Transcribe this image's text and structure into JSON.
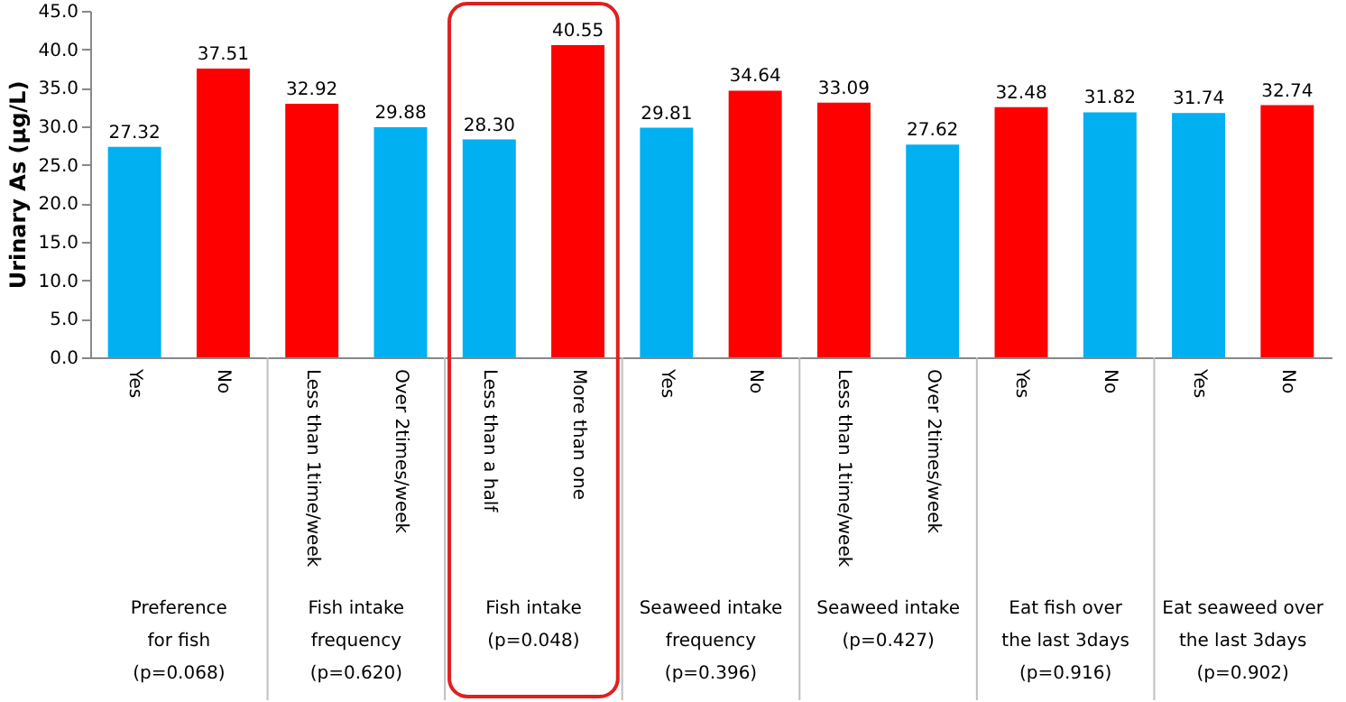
{
  "chart_data": {
    "type": "bar",
    "ylabel": "Urinary As (µg/L)",
    "categories": [
      "Yes",
      "No",
      "Less than 1time/week",
      "Over 2times/week",
      "Less than a half",
      "More than one",
      "Yes",
      "No",
      "Less than 1time/week",
      "Over 2times/week",
      "Yes",
      "No",
      "Yes",
      "No"
    ],
    "values": [
      27.32,
      37.51,
      32.92,
      29.88,
      28.3,
      40.55,
      29.81,
      34.64,
      33.09,
      27.62,
      32.48,
      31.82,
      31.74,
      32.74
    ],
    "value_labels": [
      "27.32",
      "37.51",
      "32.92",
      "29.88",
      "28.30",
      "40.55",
      "29.81",
      "34.64",
      "33.09",
      "27.62",
      "32.48",
      "31.82",
      "31.74",
      "32.74"
    ],
    "colors": [
      "#00b0f0",
      "#ff0000",
      "#ff0000",
      "#00b0f0",
      "#00b0f0",
      "#ff0000",
      "#00b0f0",
      "#ff0000",
      "#ff0000",
      "#00b0f0",
      "#ff0000",
      "#00b0f0",
      "#00b0f0",
      "#ff0000"
    ],
    "ylim": [
      0,
      45
    ],
    "yticks": [
      {
        "value": 0,
        "label": "0.0"
      },
      {
        "value": 5,
        "label": "5.0"
      },
      {
        "value": 10,
        "label": "10.0"
      },
      {
        "value": 15,
        "label": "15.0"
      },
      {
        "value": 20,
        "label": "20.0"
      },
      {
        "value": 25,
        "label": "25.0"
      },
      {
        "value": 30,
        "label": "30.0"
      },
      {
        "value": 35,
        "label": "35.0"
      },
      {
        "value": 40,
        "label": "40.0"
      },
      {
        "value": 45,
        "label": "45.0"
      }
    ],
    "annotations": [
      "Preference\nfor fish\n(p=0.068)",
      "Fish intake\nfrequency\n(p=0.620)",
      "Fish intake\n\n(p=0.048)",
      "Seaweed intake\nfrequency\n(p=0.396)",
      "Seaweed intake\n\n(p=0.427)",
      "Eat fish over\nthe last 3days\n(p=0.916)",
      "Eat seaweed over\nthe last 3days\n(p=0.902)"
    ],
    "grid": false
  }
}
